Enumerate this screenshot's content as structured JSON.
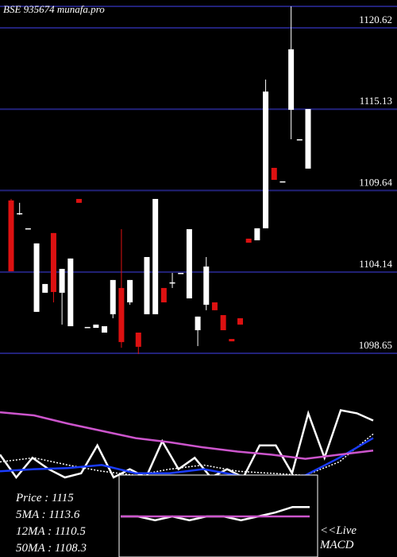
{
  "chart_data": [
    {
      "type": "candlestick",
      "title": "BSE 935674 munafa.pro",
      "ylim": [
        1098.33,
        1122.5
      ],
      "yticks": [
        1098.65,
        1104.14,
        1109.64,
        1115.13,
        1120.62
      ],
      "grid": true,
      "up_color": "#ffffff",
      "down_color": "#dd1111",
      "grid_color": "#22227a",
      "open": [
        1108.97,
        1108.11,
        1107.09,
        1101.45,
        1102.74,
        1106.77,
        1102.74,
        1100.48,
        1109.07,
        1100.43,
        1100.37,
        1100.05,
        1101.29,
        1103.06,
        1102.09,
        1100.05,
        1101.29,
        1101.29,
        1103.06,
        1103.44,
        1104.08,
        1102.36,
        1100.21,
        1101.93,
        1102.09,
        1101.23,
        1099.62,
        1101.02,
        1106.39,
        1106.28,
        1107.09,
        1111.17,
        1110.26,
        1115.09,
        1113.1,
        1111.12
      ],
      "high": [
        1109.07,
        1108.81,
        1107.09,
        1106.07,
        1103.33,
        1106.77,
        1104.35,
        1105.05,
        1109.07,
        1100.43,
        1100.59,
        1100.48,
        1103.6,
        1107.03,
        1103.6,
        1100.05,
        1105.15,
        1109.07,
        1103.06,
        1104.08,
        1104.08,
        1107.03,
        1101.13,
        1105.15,
        1102.09,
        1101.23,
        1099.62,
        1101.02,
        1106.39,
        1107.09,
        1117.13,
        1111.17,
        1110.26,
        1122.07,
        1113.1,
        1115.14
      ],
      "low": [
        1104.19,
        1108.0,
        1107.09,
        1101.45,
        1102.74,
        1102.09,
        1100.59,
        1100.48,
        1108.81,
        1100.43,
        1100.37,
        1100.05,
        1101.02,
        1099.03,
        1101.93,
        1098.6,
        1101.29,
        1101.29,
        1102.09,
        1103.06,
        1104.08,
        1102.36,
        1099.14,
        1101.56,
        1101.56,
        1100.21,
        1099.46,
        1100.59,
        1106.12,
        1106.28,
        1107.09,
        1110.36,
        1110.26,
        1113.1,
        1113.1,
        1111.12
      ],
      "close": [
        1104.19,
        1108.11,
        1107.09,
        1106.07,
        1103.33,
        1102.79,
        1104.35,
        1105.05,
        1108.81,
        1100.43,
        1100.59,
        1100.48,
        1103.6,
        1099.41,
        1103.6,
        1099.09,
        1105.15,
        1109.07,
        1102.09,
        1103.44,
        1104.08,
        1107.03,
        1101.13,
        1104.51,
        1101.56,
        1100.21,
        1099.46,
        1100.59,
        1106.12,
        1107.09,
        1116.32,
        1110.36,
        1110.26,
        1119.17,
        1113.1,
        1115.14
      ]
    },
    {
      "type": "line",
      "ylim": [
        0,
        100
      ],
      "annotations": [
        "Price  : 1115",
        "5MA : 1113.6",
        "12MA : 1110.5",
        "50MA : 1108.3"
      ],
      "series": [
        {
          "color": "#ffffff",
          "style": "solid",
          "values": [
            22,
            0,
            19,
            8,
            0,
            4,
            31,
            0,
            8,
            0,
            35,
            8,
            19,
            0,
            8,
            0,
            31,
            31,
            4,
            62,
            19,
            65,
            62,
            55
          ]
        },
        {
          "color": "#ffffff",
          "style": "dotted",
          "values": [
            15,
            19,
            12,
            6,
            2,
            8,
            12,
            6,
            4,
            2,
            15,
            42
          ]
        },
        {
          "color": "#1a3cff",
          "style": "solid",
          "values": [
            6,
            8,
            9,
            12,
            4,
            4,
            8,
            2,
            0,
            2,
            19,
            38
          ]
        },
        {
          "color": "#cc55cc",
          "style": "solid",
          "values": [
            63,
            60,
            52,
            45,
            38,
            34,
            29,
            25,
            22,
            18,
            22,
            26
          ]
        }
      ]
    },
    {
      "type": "line",
      "ylim": [
        -5,
        5
      ],
      "annotations": [
        "<<Live",
        "MACD"
      ],
      "series": [
        {
          "color": "#ffffff",
          "style": "solid",
          "values": [
            0,
            0,
            -0.5,
            0,
            -0.5,
            0,
            0,
            -0.5,
            0,
            0.5,
            1.2,
            1.2
          ]
        },
        {
          "color": "#cc55cc",
          "style": "solid",
          "values": [
            0,
            0,
            0,
            0,
            0,
            0,
            0,
            0,
            0,
            0,
            0,
            0
          ]
        }
      ]
    }
  ]
}
